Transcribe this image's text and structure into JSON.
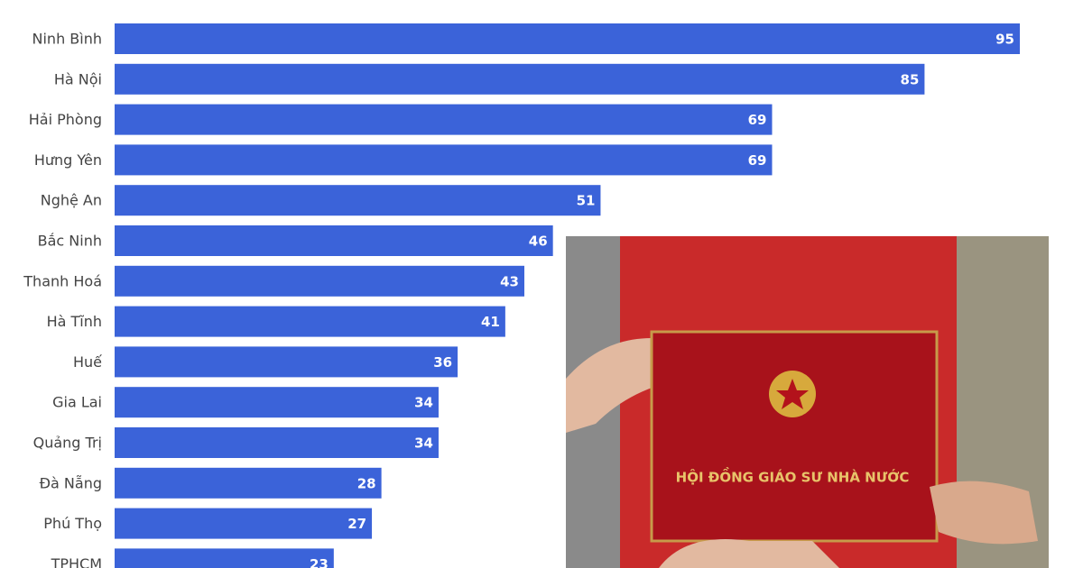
{
  "chart_data": {
    "type": "bar",
    "orientation": "horizontal",
    "categories": [
      "Ninh Bình",
      "Hà Nội",
      "Hải Phòng",
      "Hưng Yên",
      "Nghệ An",
      "Bắc Ninh",
      "Thanh Hoá",
      "Hà Tĩnh",
      "Huế",
      "Gia Lai",
      "Quảng Trị",
      "Đà Nẵng",
      "Phú Thọ",
      "TPHCM"
    ],
    "values": [
      95,
      85,
      69,
      69,
      51,
      46,
      43,
      41,
      36,
      34,
      34,
      28,
      27,
      23
    ],
    "color": "#3b63d9"
  },
  "photo": {
    "caption": "HỘI ĐỒNG GIÁO SƯ NHÀ NƯỚC"
  }
}
